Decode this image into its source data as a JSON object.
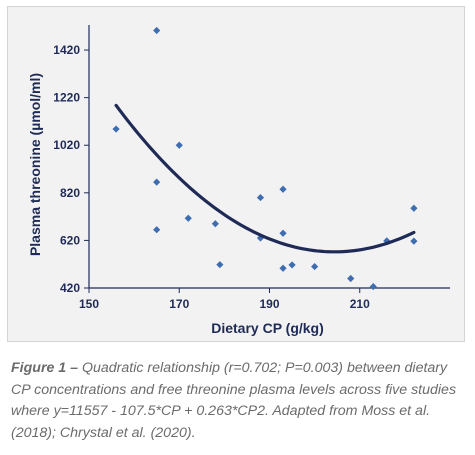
{
  "chart_data": {
    "type": "scatter",
    "xlabel": "Dietary CP (g/kg)",
    "ylabel": "Plasma threonine (µmol/ml)",
    "xlim": [
      150,
      230
    ],
    "ylim": [
      420,
      1500
    ],
    "x_ticks": [
      "150",
      "170",
      "190",
      "210"
    ],
    "x_tick_values": [
      150,
      170,
      190,
      210
    ],
    "y_ticks": [
      "420",
      "620",
      "820",
      "1020",
      "1220",
      "1420"
    ],
    "y_tick_values": [
      420,
      620,
      820,
      1020,
      1220,
      1420
    ],
    "grid": false,
    "points": [
      {
        "x": 156,
        "y": 1088
      },
      {
        "x": 165,
        "y": 1502
      },
      {
        "x": 165,
        "y": 865
      },
      {
        "x": 165,
        "y": 665
      },
      {
        "x": 170,
        "y": 1020
      },
      {
        "x": 172,
        "y": 713
      },
      {
        "x": 178,
        "y": 690
      },
      {
        "x": 179,
        "y": 518
      },
      {
        "x": 188,
        "y": 800
      },
      {
        "x": 188,
        "y": 630
      },
      {
        "x": 193,
        "y": 835
      },
      {
        "x": 193,
        "y": 650
      },
      {
        "x": 193,
        "y": 503
      },
      {
        "x": 195,
        "y": 517
      },
      {
        "x": 200,
        "y": 510
      },
      {
        "x": 208,
        "y": 460
      },
      {
        "x": 213,
        "y": 426
      },
      {
        "x": 216,
        "y": 618
      },
      {
        "x": 222,
        "y": 755
      },
      {
        "x": 222,
        "y": 617
      }
    ],
    "fit": {
      "type": "quadratic",
      "a": 0.263,
      "b": -107.5,
      "c": 11557,
      "x_range": [
        156,
        222
      ]
    },
    "colors": {
      "points": "#3e6db0",
      "curve": "#1f2b56",
      "axis": "#1f2b56",
      "background": "#f2f2f2"
    }
  },
  "caption": {
    "label": "Figure 1 –",
    "text": " Quadratic relationship (r=0.702; P=0.003) between dietary CP concentrations and free threonine plasma levels across five studies where y=11557 - 107.5*CP + 0.263*CP2. Adapted from Moss et al. (2018); Chrystal et al. (2020)."
  }
}
